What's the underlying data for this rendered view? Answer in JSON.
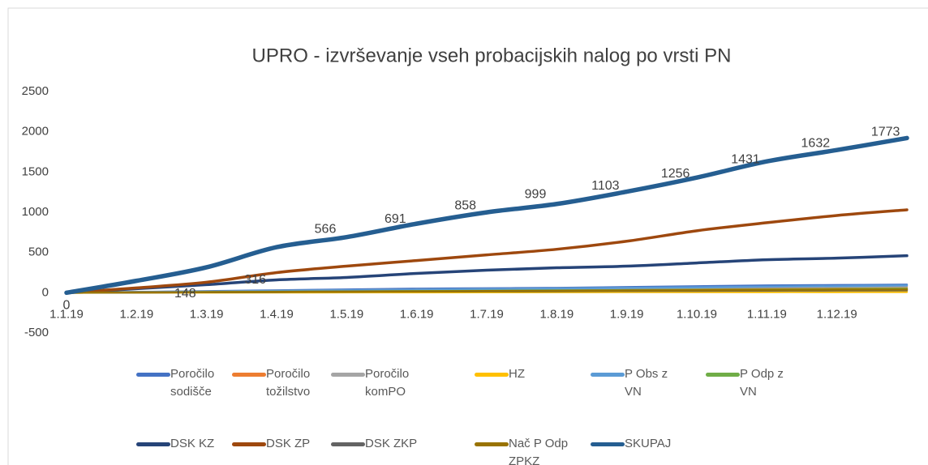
{
  "chart_data": {
    "type": "line",
    "title": "UPRO - izvrševanje vseh probacijskih nalog po vrsti PN",
    "categories": [
      "1.1.19",
      "1.2.19",
      "1.3.19",
      "1.4.19",
      "1.5.19",
      "1.6.19",
      "1.7.19",
      "1.8.19",
      "1.9.19",
      "1.10.19",
      "1.11.19",
      "1.12.19",
      null
    ],
    "ylim": [
      -500,
      2500
    ],
    "yticks": [
      -500,
      0,
      500,
      1000,
      1500,
      2000,
      2500
    ],
    "grid": false,
    "legend": "bottom",
    "series": [
      {
        "name": "Poročilo sodišče",
        "color": "#4472c4",
        "values": [
          0,
          10,
          20,
          30,
          40,
          50,
          55,
          60,
          70,
          80,
          90,
          95,
          100
        ]
      },
      {
        "name": "Poročilo tožilstvo",
        "color": "#ed7d31",
        "values": [
          0,
          5,
          10,
          15,
          20,
          25,
          30,
          35,
          40,
          45,
          50,
          55,
          60
        ]
      },
      {
        "name": "Poročilo komPO",
        "color": "#a5a5a5",
        "values": [
          0,
          8,
          16,
          24,
          30,
          38,
          45,
          52,
          58,
          64,
          70,
          75,
          80
        ]
      },
      {
        "name": "HZ",
        "color": "#ffc000",
        "values": [
          0,
          1,
          2,
          3,
          4,
          5,
          6,
          7,
          8,
          8,
          9,
          9,
          10
        ]
      },
      {
        "name": "P Obs z VN",
        "color": "#5b9bd5",
        "values": [
          0,
          7,
          14,
          22,
          30,
          37,
          45,
          52,
          60,
          68,
          75,
          82,
          90
        ]
      },
      {
        "name": "P Odp z VN",
        "color": "#70ad47",
        "values": [
          0,
          4,
          8,
          12,
          16,
          20,
          24,
          28,
          32,
          36,
          40,
          45,
          50
        ]
      },
      {
        "name": "DSK KZ",
        "color": "#264478",
        "values": [
          0,
          50,
          100,
          160,
          190,
          240,
          280,
          310,
          330,
          370,
          410,
          430,
          460
        ]
      },
      {
        "name": "DSK ZP",
        "color": "#9e480e",
        "values": [
          0,
          60,
          130,
          250,
          330,
          400,
          470,
          540,
          640,
          770,
          870,
          960,
          1030
        ]
      },
      {
        "name": "DSK ZKP",
        "color": "#636363",
        "values": [
          0,
          3,
          6,
          9,
          12,
          15,
          17,
          19,
          22,
          24,
          26,
          28,
          30
        ]
      },
      {
        "name": "Nač P Odp ZPKZ",
        "color": "#997300",
        "values": [
          0,
          3,
          7,
          10,
          14,
          17,
          21,
          24,
          28,
          31,
          35,
          38,
          40
        ]
      },
      {
        "name": "SKUPAJ",
        "color": "#255e91",
        "values": [
          0,
          148,
          316,
          566,
          691,
          858,
          999,
          1103,
          1256,
          1431,
          1632,
          1773,
          1922
        ],
        "data_labels": true
      }
    ]
  }
}
